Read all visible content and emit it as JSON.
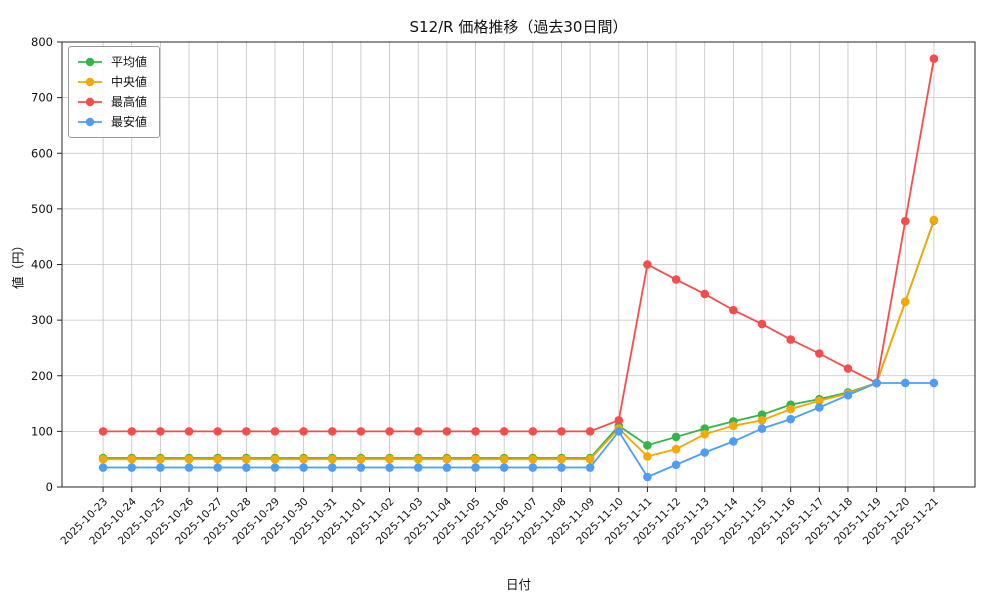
{
  "chart_data": {
    "type": "line",
    "title": "S12/R 価格推移（過去30日間）",
    "xlabel": "日付",
    "ylabel": "値（円）",
    "ylim": [
      0,
      800
    ],
    "yticks": [
      0,
      100,
      200,
      300,
      400,
      500,
      600,
      700,
      800
    ],
    "grid": true,
    "legend_position": "upper-left",
    "categories": [
      "2025-10-23",
      "2025-10-24",
      "2025-10-25",
      "2025-10-26",
      "2025-10-27",
      "2025-10-28",
      "2025-10-29",
      "2025-10-30",
      "2025-10-31",
      "2025-11-01",
      "2025-11-02",
      "2025-11-03",
      "2025-11-04",
      "2025-11-05",
      "2025-11-06",
      "2025-11-07",
      "2025-11-08",
      "2025-11-09",
      "2025-11-10",
      "2025-11-11",
      "2025-11-12",
      "2025-11-13",
      "2025-11-14",
      "2025-11-15",
      "2025-11-16",
      "2025-11-17",
      "2025-11-18",
      "2025-11-19",
      "2025-11-20",
      "2025-11-21"
    ],
    "series": [
      {
        "key": "avg",
        "name": "平均値",
        "color": "#33b54d",
        "values": [
          52,
          52,
          52,
          52,
          52,
          52,
          52,
          52,
          52,
          52,
          52,
          52,
          52,
          52,
          52,
          52,
          52,
          52,
          110,
          75,
          90,
          105,
          118,
          130,
          148,
          158,
          170,
          187,
          333,
          479
        ]
      },
      {
        "key": "median",
        "name": "中央値",
        "color": "#f5a800",
        "values": [
          50,
          50,
          50,
          50,
          50,
          50,
          50,
          50,
          50,
          50,
          50,
          50,
          50,
          50,
          50,
          50,
          50,
          50,
          105,
          55,
          68,
          95,
          110,
          120,
          140,
          155,
          168,
          187,
          333,
          480
        ]
      },
      {
        "key": "max",
        "name": "最高値",
        "color": "#f84c4c",
        "values": [
          100,
          100,
          100,
          100,
          100,
          100,
          100,
          100,
          100,
          100,
          100,
          100,
          100,
          100,
          100,
          100,
          100,
          100,
          120,
          400,
          373,
          347,
          318,
          293,
          265,
          240,
          213,
          187,
          478,
          770
        ]
      },
      {
        "key": "min",
        "name": "最安値",
        "color": "#4d9ef9",
        "values": [
          35,
          35,
          35,
          35,
          35,
          35,
          35,
          35,
          35,
          35,
          35,
          35,
          35,
          35,
          35,
          35,
          35,
          35,
          100,
          18,
          40,
          62,
          82,
          105,
          122,
          143,
          165,
          187,
          187,
          187
        ]
      }
    ]
  }
}
